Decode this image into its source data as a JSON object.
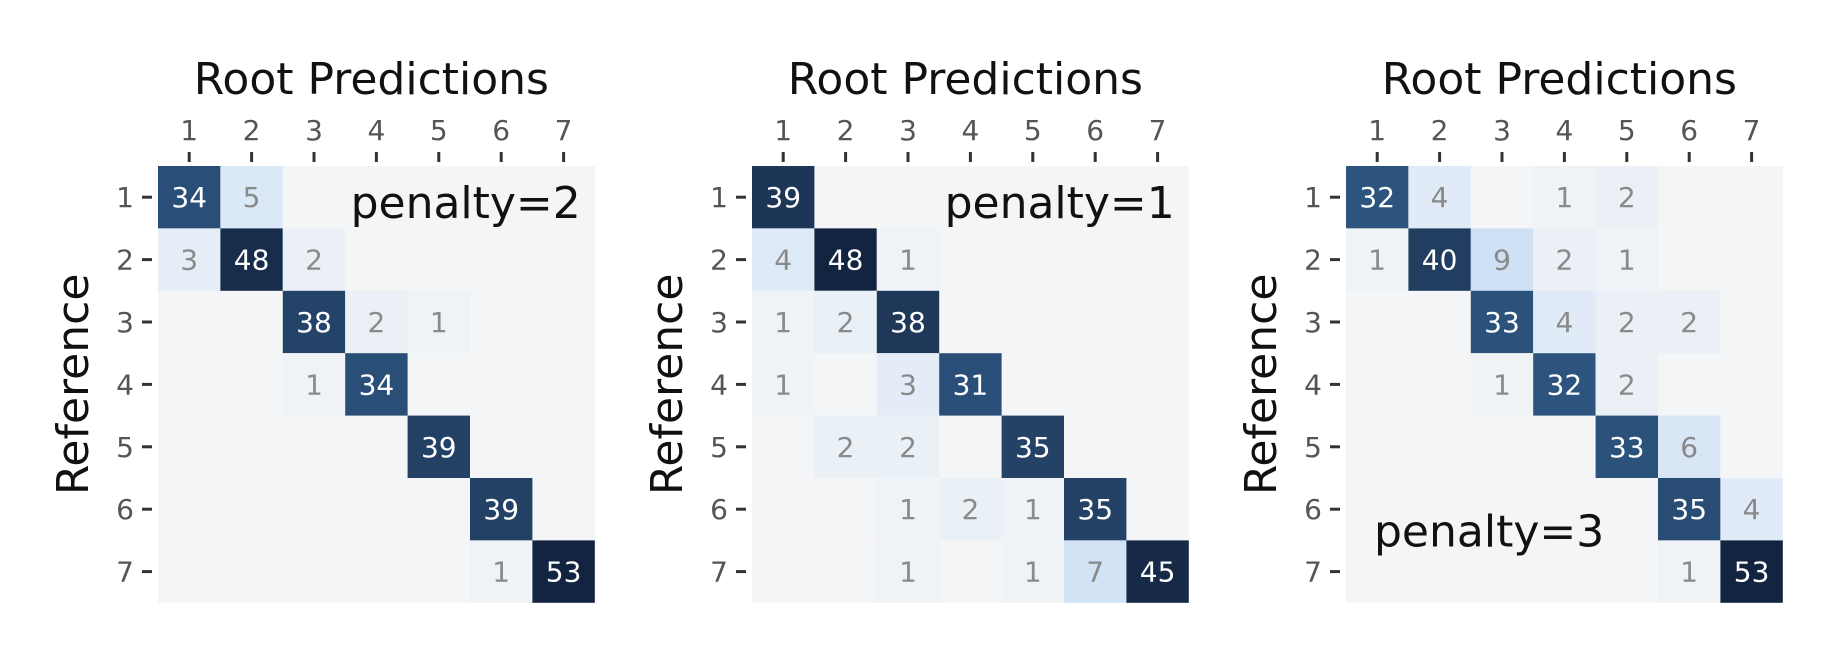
{
  "chart_data": [
    {
      "type": "heatmap",
      "title": "Root Predictions",
      "ylabel": "Reference",
      "x_ticks": [
        "1",
        "2",
        "3",
        "4",
        "5",
        "6",
        "7"
      ],
      "y_ticks": [
        "1",
        "2",
        "3",
        "4",
        "5",
        "6",
        "7"
      ],
      "annotation": "penalty=2",
      "annotation_position": "top-right",
      "matrix": [
        [
          34,
          5,
          0,
          0,
          0,
          0,
          0
        ],
        [
          3,
          48,
          2,
          0,
          0,
          0,
          0
        ],
        [
          0,
          0,
          38,
          2,
          1,
          0,
          0
        ],
        [
          0,
          0,
          1,
          34,
          0,
          0,
          0
        ],
        [
          0,
          0,
          0,
          0,
          39,
          0,
          0
        ],
        [
          0,
          0,
          0,
          0,
          0,
          39,
          0
        ],
        [
          0,
          0,
          0,
          0,
          0,
          1,
          53
        ]
      ]
    },
    {
      "type": "heatmap",
      "title": "Root Predictions",
      "ylabel": "Reference",
      "x_ticks": [
        "1",
        "2",
        "3",
        "4",
        "5",
        "6",
        "7"
      ],
      "y_ticks": [
        "1",
        "2",
        "3",
        "4",
        "5",
        "6",
        "7"
      ],
      "annotation": "penalty=1",
      "annotation_position": "top-right",
      "matrix": [
        [
          39,
          0,
          0,
          0,
          0,
          0,
          0
        ],
        [
          4,
          48,
          1,
          0,
          0,
          0,
          0
        ],
        [
          1,
          2,
          38,
          0,
          0,
          0,
          0
        ],
        [
          1,
          0,
          3,
          31,
          0,
          0,
          0
        ],
        [
          0,
          2,
          2,
          0,
          35,
          0,
          0
        ],
        [
          0,
          0,
          1,
          2,
          1,
          35,
          0
        ],
        [
          0,
          0,
          1,
          0,
          1,
          7,
          45
        ]
      ]
    },
    {
      "type": "heatmap",
      "title": "Root Predictions",
      "ylabel": "Reference",
      "x_ticks": [
        "1",
        "2",
        "3",
        "4",
        "5",
        "6",
        "7"
      ],
      "y_ticks": [
        "1",
        "2",
        "3",
        "4",
        "5",
        "6",
        "7"
      ],
      "annotation": "penalty=3",
      "annotation_position": "bottom-left",
      "matrix": [
        [
          32,
          4,
          0,
          1,
          2,
          0,
          0
        ],
        [
          1,
          40,
          9,
          2,
          1,
          0,
          0
        ],
        [
          0,
          0,
          33,
          4,
          2,
          2,
          0
        ],
        [
          0,
          0,
          1,
          32,
          2,
          0,
          0
        ],
        [
          0,
          0,
          0,
          0,
          33,
          6,
          0
        ],
        [
          0,
          0,
          0,
          0,
          0,
          35,
          4
        ],
        [
          0,
          0,
          0,
          0,
          0,
          1,
          53
        ]
      ]
    }
  ],
  "colors": {
    "background_cell": "#f4f5f6",
    "dark_text": "#ffffff",
    "light_text": "#8a8a8a",
    "tick_text": "#555555",
    "axis_title": "#111111"
  }
}
